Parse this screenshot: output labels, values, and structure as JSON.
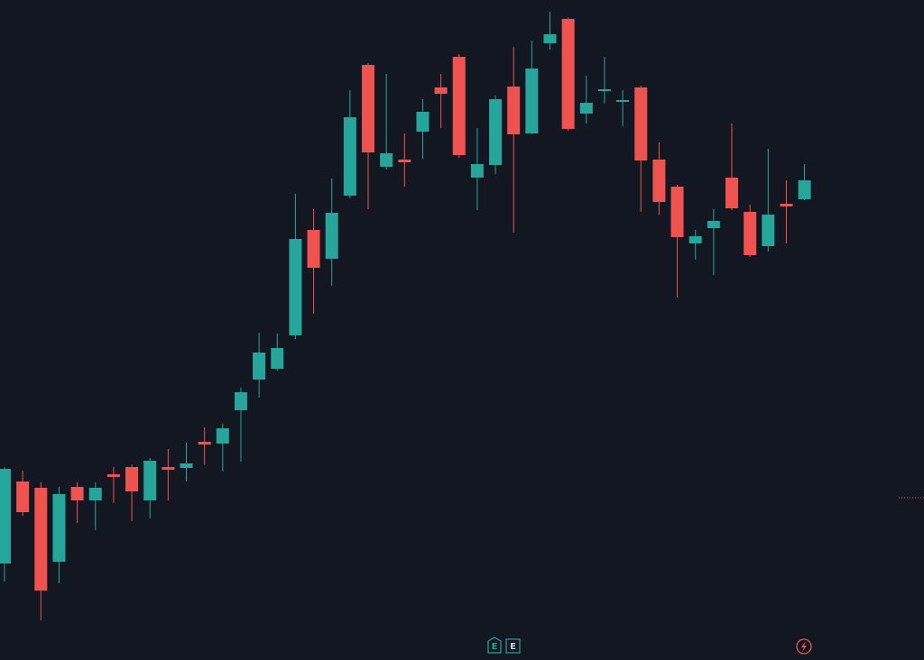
{
  "chart_data": {
    "type": "candlestick",
    "open": [
      107,
      198,
      191,
      109,
      192,
      177,
      206,
      214,
      177,
      214,
      213,
      242,
      240,
      277,
      311,
      323,
      360,
      477,
      445,
      515,
      660,
      547,
      555,
      586,
      635,
      669,
      535,
      549,
      636,
      584,
      684,
      711,
      606,
      632,
      619,
      635,
      555,
      525,
      462,
      479,
      535,
      497,
      459,
      506,
      511
    ],
    "high": [
      214,
      210,
      197,
      192,
      197,
      197,
      214,
      217,
      224,
      234,
      241,
      258,
      262,
      302,
      363,
      362,
      517,
      500,
      534,
      632,
      662,
      650,
      584,
      622,
      650,
      672,
      590,
      626,
      680,
      687,
      719,
      713,
      648,
      669,
      632,
      637,
      574,
      527,
      477,
      500,
      595,
      505,
      567,
      532,
      550
    ],
    "low": [
      87,
      160,
      44,
      85,
      152,
      144,
      174,
      154,
      157,
      177,
      198,
      217,
      209,
      220,
      291,
      321,
      356,
      384,
      415,
      512,
      500,
      544,
      525,
      556,
      590,
      557,
      499,
      539,
      474,
      583,
      677,
      587,
      595,
      617,
      592,
      497,
      494,
      402,
      444,
      427,
      499,
      447,
      453,
      462,
      510
    ],
    "close": [
      212,
      164,
      77,
      184,
      177,
      191,
      203,
      187,
      221,
      211,
      218,
      239,
      257,
      297,
      341,
      346,
      467,
      435,
      496,
      602,
      563,
      562,
      552,
      608,
      628,
      560,
      550,
      622,
      583,
      656,
      694,
      589,
      618,
      633,
      621,
      554,
      508,
      469,
      470,
      487,
      501,
      449,
      494,
      503,
      532
    ],
    "up_color": "#26a69a",
    "down_color": "#ef5350",
    "ylim": [
      0,
      732
    ]
  },
  "event_markers": [
    "E",
    "E"
  ]
}
